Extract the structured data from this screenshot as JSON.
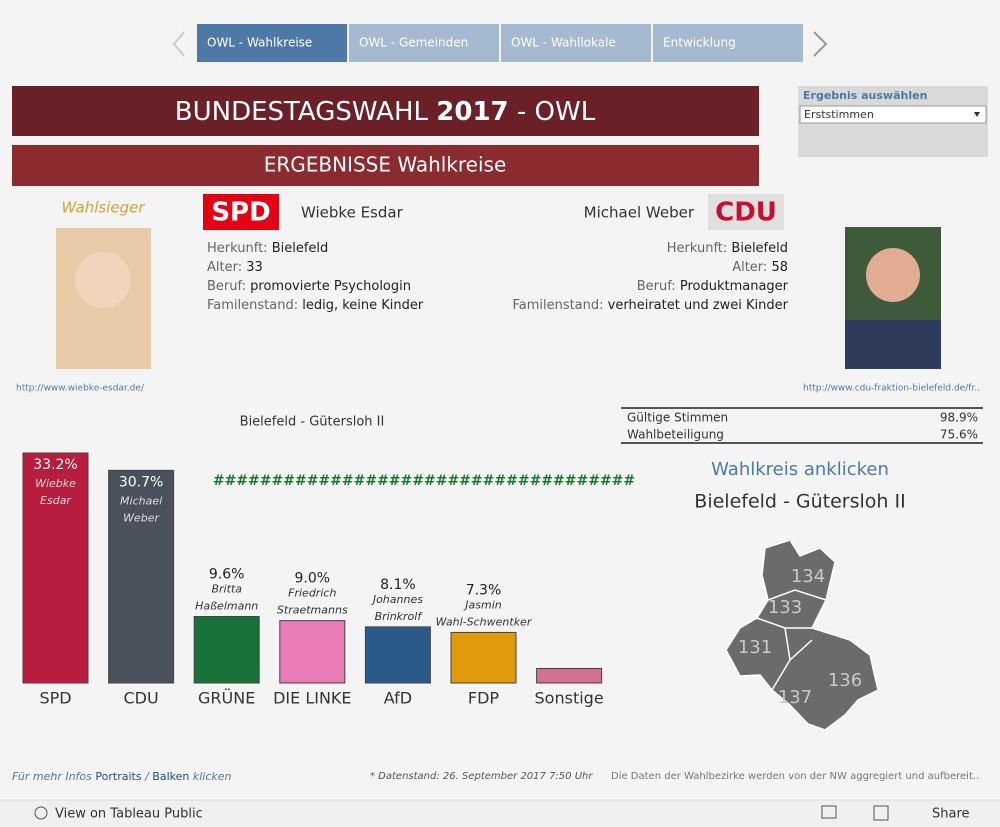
{
  "nav": {
    "tabs": [
      "OWL - Wahlkreise",
      "OWL - Gemeinden",
      "OWL - Wahllokale",
      "Entwicklung"
    ]
  },
  "header": {
    "title_pre": "BUNDESTAGSWAHL",
    "title_bold": "2017",
    "title_post": "- OWL",
    "subtitle": "ERGEBNISSE Wahlkreise"
  },
  "filter": {
    "label": "Ergebnis auswählen",
    "value": "Erststimmen"
  },
  "winner_label": "Wahlsieger",
  "candidates": [
    {
      "party": "SPD",
      "name": "Wiebke Esdar",
      "fields": [
        [
          "Herkunft:",
          "Bielefeld"
        ],
        [
          "Alter:",
          "33"
        ],
        [
          "Beruf:",
          "promovierte Psychologin"
        ],
        [
          "Familenstand:",
          "ledig, keine Kinder"
        ]
      ],
      "link": "http://www.wiebke-esdar.de/"
    },
    {
      "party": "CDU",
      "name": "Michael Weber",
      "fields": [
        [
          "Herkunft:",
          "Bielefeld"
        ],
        [
          "Alter:",
          "58"
        ],
        [
          "Beruf:",
          "Produktmanager"
        ],
        [
          "Familenstand:",
          "verheiratet und zwei Kinder"
        ]
      ],
      "link": "http://www.cdu-fraktion-bielefeld.de/fr.."
    }
  ],
  "stats": [
    [
      "Gültige Stimmen",
      "98.9%"
    ],
    [
      "Wahlbeteiligung",
      "75.6%"
    ]
  ],
  "chart_data": {
    "type": "bar",
    "title": "Bielefeld - Gütersloh II",
    "annotation": "####################################",
    "categories": [
      "SPD",
      "CDU",
      "GRÜNE",
      "DIE LINKE",
      "AfD",
      "FDP",
      "Sonstige"
    ],
    "values": [
      33.2,
      30.7,
      9.6,
      9.0,
      8.1,
      7.3,
      2.1
    ],
    "value_labels": [
      "33.2%",
      "30.7%",
      "9.6%",
      "9.0%",
      "8.1%",
      "7.3%",
      null
    ],
    "candidate_names": [
      "Wiebke Esdar",
      "Michael Weber",
      "Britta Haßelmann",
      "Friedrich Straetmanns",
      "Johannes Brinkrolf",
      "Jasmin Wahl-Schwentker",
      null
    ],
    "colors": [
      "#b81c3f",
      "#4a505c",
      "#17723a",
      "#e97bb7",
      "#2b5a8a",
      "#e29a0d",
      "#d4708f"
    ]
  },
  "map": {
    "title": "Wahlkreis anklicken",
    "subtitle": "Bielefeld - Gütersloh II",
    "labels": [
      "134",
      "133",
      "131",
      "136",
      "137"
    ]
  },
  "footer": {
    "info_pre": "Für mehr Infos",
    "portraits": "Portraits",
    "sep": "/",
    "balken": "Balken",
    "klicken": "klicken",
    "datenstand": "*  Datenstand: 26. September 2017 7:50 Uhr",
    "note": "Die Daten der Wahlbezirke werden von der NW aggregiert und aufbereit.."
  },
  "toolbar": {
    "view": "View on Tableau Public",
    "share": "Share"
  }
}
